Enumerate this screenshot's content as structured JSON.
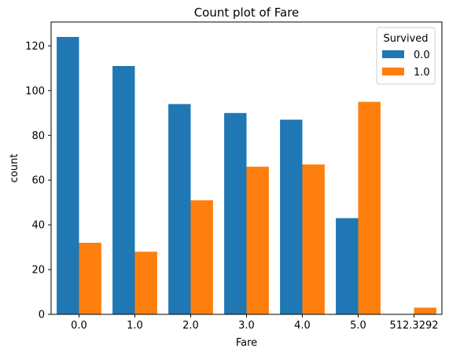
{
  "chart_data": {
    "type": "bar",
    "title": "Count plot of Fare",
    "xlabel": "Fare",
    "ylabel": "count",
    "categories": [
      "0.0",
      "1.0",
      "2.0",
      "3.0",
      "4.0",
      "5.0",
      "512.3292"
    ],
    "series": [
      {
        "name": "0.0",
        "color": "#1f77b4",
        "values": [
          124,
          111,
          94,
          90,
          87,
          43,
          0
        ]
      },
      {
        "name": "1.0",
        "color": "#ff7f0e",
        "values": [
          32,
          28,
          51,
          66,
          67,
          95,
          3
        ]
      }
    ],
    "ylim": [
      0,
      130
    ],
    "yticks": [
      0,
      20,
      40,
      60,
      80,
      100,
      120
    ],
    "grid": false,
    "legend": {
      "title": "Survived",
      "placement": "top-right"
    }
  }
}
